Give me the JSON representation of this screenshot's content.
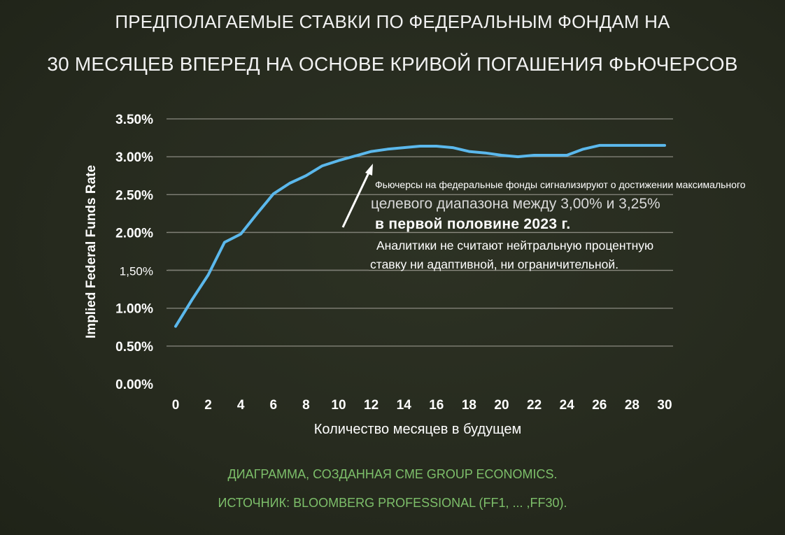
{
  "title": {
    "line1": "ПРЕДПОЛАГАЕМЫЕ СТАВКИ ПО ФЕДЕРАЛЬНЫМ ФОНДАМ НА",
    "line2": "30 МЕСЯЦЕВ ВПЕРЕД НА ОСНОВЕ КРИВОЙ ПОГАШЕНИЯ ФЬЮЧЕРСОВ"
  },
  "annotation": {
    "line1": "Фьючерсы на федеральные фонды сигнализируют о достижении максимального",
    "line2": "целевого диапазона между 3,00% и 3,25%",
    "line3": "в первой половине 2023 г.",
    "line4": "Аналитики не считают нейтральную процентную",
    "line5": "ставку ни адаптивной, ни ограничительной."
  },
  "footer": {
    "line1": "ДИАГРАММА, СОЗДАННАЯ CME GROUP ECONOMICS.",
    "line2": "ИСТОЧНИК: BLOOMBERG PROFESSIONAL (FF1, ... ,FF30)."
  },
  "colors": {
    "line": "#5bb8ec",
    "grid": "#8a8a80",
    "footer": "#7dbf6a",
    "background": "#262a1e"
  },
  "chart_data": {
    "type": "line",
    "title": "",
    "xlabel": "Количество месяцев в будущем",
    "ylabel": "Implied Federal Funds Rate",
    "xlim": [
      0,
      30
    ],
    "ylim": [
      0,
      3.5
    ],
    "x_ticks": [
      "0",
      "2",
      "4",
      "6",
      "8",
      "10",
      "12",
      "14",
      "16",
      "18",
      "20",
      "22",
      "24",
      "26",
      "28",
      "30"
    ],
    "y_ticks": [
      "0.00%",
      "0.50%",
      "1.00%",
      "1,50%",
      "2.00%",
      "2.50%",
      "3.00%",
      "3.50%"
    ],
    "grid": true,
    "series": [
      {
        "x": [
          0,
          1,
          2,
          3,
          4,
          5,
          6,
          7,
          8,
          9,
          10,
          11,
          12,
          13,
          14,
          15,
          16,
          17,
          18,
          19,
          20,
          21,
          22,
          23,
          24,
          25,
          26,
          27,
          28,
          29,
          30
        ],
        "values": [
          0.76,
          1.11,
          1.44,
          1.87,
          1.98,
          2.25,
          2.51,
          2.65,
          2.75,
          2.88,
          2.95,
          3.01,
          3.07,
          3.1,
          3.12,
          3.14,
          3.14,
          3.12,
          3.07,
          3.05,
          3.02,
          3.0,
          3.02,
          3.02,
          3.02,
          3.1,
          3.15,
          3.15,
          3.15,
          3.15,
          3.15
        ]
      }
    ]
  }
}
